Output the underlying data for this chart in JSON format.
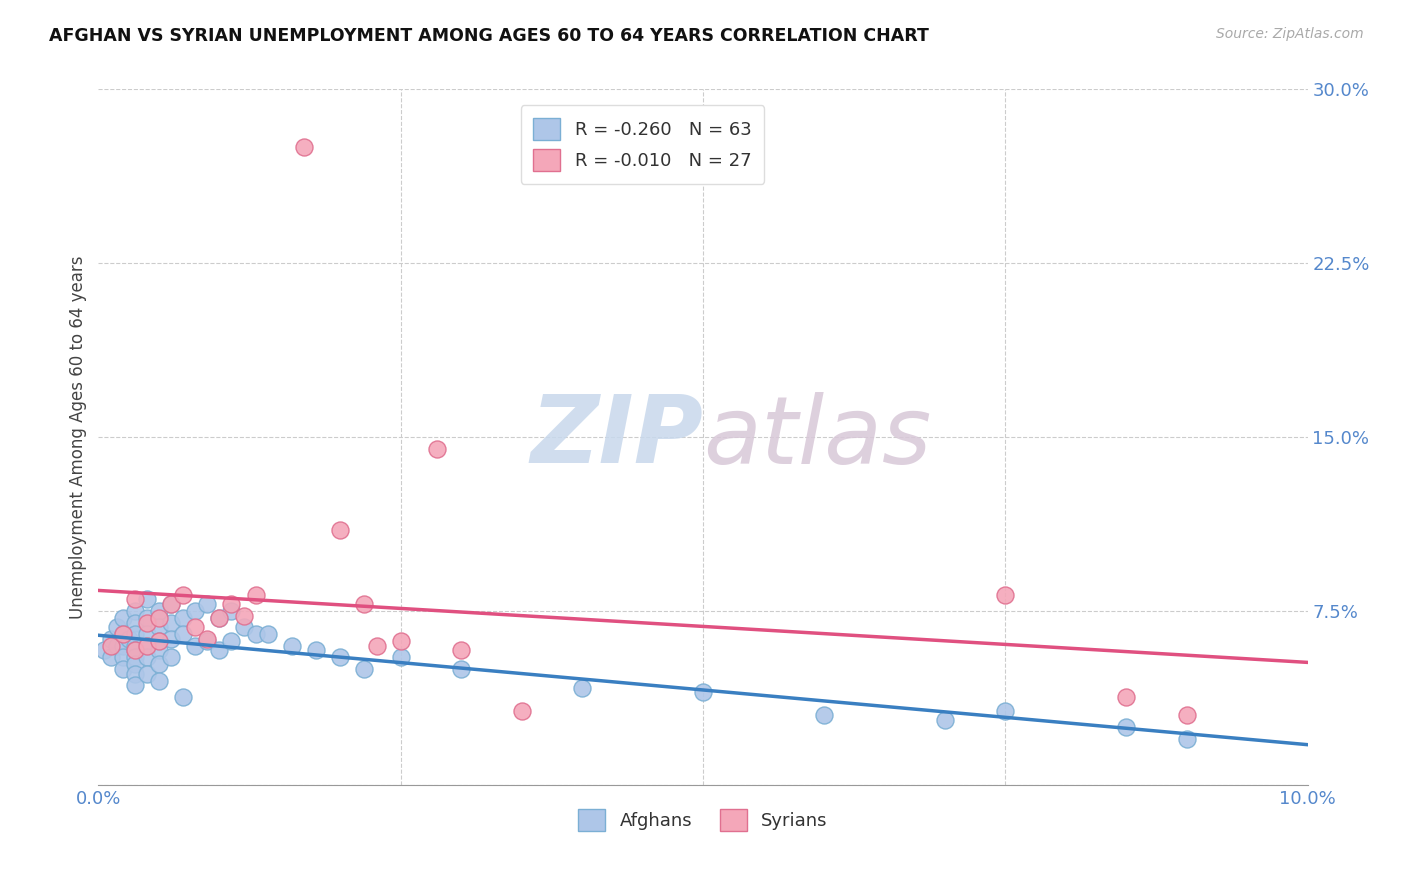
{
  "title": "AFGHAN VS SYRIAN UNEMPLOYMENT AMONG AGES 60 TO 64 YEARS CORRELATION CHART",
  "source": "Source: ZipAtlas.com",
  "ylabel": "Unemployment Among Ages 60 to 64 years",
  "xlim": [
    0.0,
    0.1
  ],
  "ylim": [
    0.0,
    0.3
  ],
  "xticks": [
    0.0,
    0.025,
    0.05,
    0.075,
    0.1
  ],
  "xtick_labels": [
    "0.0%",
    "",
    "",
    "",
    "10.0%"
  ],
  "ytick_labels_right": [
    "",
    "7.5%",
    "15.0%",
    "22.5%",
    "30.0%"
  ],
  "yticks": [
    0.0,
    0.075,
    0.15,
    0.225,
    0.3
  ],
  "grid_color": "#cccccc",
  "background_color": "#ffffff",
  "watermark_zip": "ZIP",
  "watermark_atlas": "atlas",
  "afghan_color": "#aec6e8",
  "afghan_edge_color": "#7bafd4",
  "syrian_color": "#f4a7b9",
  "syrian_edge_color": "#e07090",
  "afghan_R": -0.26,
  "afghan_N": 63,
  "syrian_R": -0.01,
  "syrian_N": 27,
  "legend_label1": "R = -0.260   N = 63",
  "legend_label2": "R = -0.010   N = 27",
  "bottom_legend_afghans": "Afghans",
  "bottom_legend_syrians": "Syrians",
  "trend_afghan_color": "#3a7fc1",
  "trend_syrian_color": "#e05080",
  "tick_color": "#5588cc",
  "afghan_x": [
    0.0005,
    0.001,
    0.001,
    0.0015,
    0.0015,
    0.002,
    0.002,
    0.002,
    0.002,
    0.002,
    0.0025,
    0.003,
    0.003,
    0.003,
    0.003,
    0.003,
    0.003,
    0.003,
    0.003,
    0.003,
    0.004,
    0.004,
    0.004,
    0.004,
    0.004,
    0.004,
    0.005,
    0.005,
    0.005,
    0.005,
    0.005,
    0.005,
    0.006,
    0.006,
    0.006,
    0.006,
    0.007,
    0.007,
    0.007,
    0.008,
    0.008,
    0.009,
    0.009,
    0.01,
    0.01,
    0.011,
    0.011,
    0.012,
    0.013,
    0.014,
    0.016,
    0.018,
    0.02,
    0.022,
    0.025,
    0.03,
    0.04,
    0.05,
    0.06,
    0.07,
    0.075,
    0.085,
    0.09
  ],
  "afghan_y": [
    0.058,
    0.063,
    0.055,
    0.068,
    0.06,
    0.072,
    0.065,
    0.06,
    0.055,
    0.05,
    0.063,
    0.075,
    0.07,
    0.065,
    0.06,
    0.058,
    0.055,
    0.052,
    0.048,
    0.043,
    0.08,
    0.072,
    0.065,
    0.06,
    0.055,
    0.048,
    0.075,
    0.068,
    0.062,
    0.058,
    0.052,
    0.045,
    0.078,
    0.07,
    0.063,
    0.055,
    0.072,
    0.065,
    0.038,
    0.075,
    0.06,
    0.078,
    0.062,
    0.072,
    0.058,
    0.075,
    0.062,
    0.068,
    0.065,
    0.065,
    0.06,
    0.058,
    0.055,
    0.05,
    0.055,
    0.05,
    0.042,
    0.04,
    0.03,
    0.028,
    0.032,
    0.025,
    0.02
  ],
  "syrian_x": [
    0.001,
    0.002,
    0.003,
    0.003,
    0.004,
    0.004,
    0.005,
    0.005,
    0.006,
    0.007,
    0.008,
    0.009,
    0.01,
    0.011,
    0.012,
    0.013,
    0.017,
    0.02,
    0.022,
    0.023,
    0.025,
    0.028,
    0.03,
    0.035,
    0.075,
    0.085,
    0.09
  ],
  "syrian_y": [
    0.06,
    0.065,
    0.08,
    0.058,
    0.07,
    0.06,
    0.072,
    0.062,
    0.078,
    0.082,
    0.068,
    0.063,
    0.072,
    0.078,
    0.073,
    0.082,
    0.275,
    0.11,
    0.078,
    0.06,
    0.062,
    0.145,
    0.058,
    0.032,
    0.082,
    0.038,
    0.03
  ]
}
